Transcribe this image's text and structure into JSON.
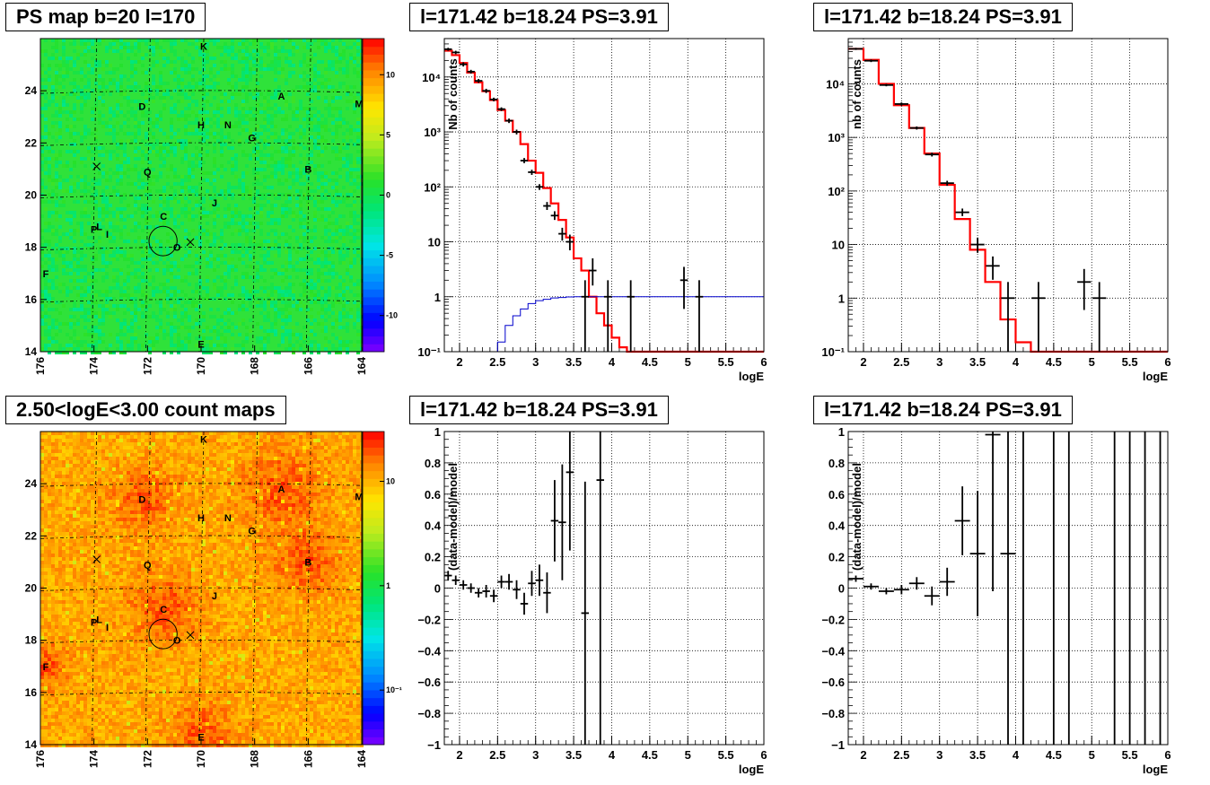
{
  "panels": {
    "map1_title": "PS map b=20 l=170",
    "map2_title": "2.50<logE<3.00 count maps",
    "spec1_title": "l=171.42 b=18.24 PS=3.91",
    "spec2_title": "l=171.42 b=18.24 PS=3.91",
    "res1_title": "l=171.42 b=18.24 PS=3.91",
    "res2_title": "l=171.42 b=18.24 PS=3.91"
  },
  "colors": {
    "data": "#000000",
    "model": "#ff0000",
    "signal": "#0000cc",
    "grid": "#000000",
    "map1_bg": "#2fe23a",
    "map2_bg": "#f0842a"
  },
  "chart_data": [
    {
      "id": "map1",
      "type": "heatmap",
      "title": "PS map b=20 l=170",
      "x_ticks": [
        "176",
        "174",
        "172",
        "170",
        "168",
        "166",
        "164"
      ],
      "y_ticks": [
        "14",
        "16",
        "18",
        "20",
        "22",
        "24"
      ],
      "xlim": [
        176,
        164
      ],
      "ylim": [
        14,
        26
      ],
      "colorbar": {
        "scale": "linear",
        "range": [
          -13,
          13
        ],
        "ticks": [
          "10",
          "5",
          "0",
          "-5",
          "-10"
        ],
        "tick_values": [
          10,
          5,
          0,
          -5,
          -10
        ]
      },
      "labels": [
        {
          "t": "K",
          "l": 169.9,
          "b": 25.7
        },
        {
          "t": "A",
          "l": 167.0,
          "b": 23.8
        },
        {
          "t": "M",
          "l": 164.1,
          "b": 23.5
        },
        {
          "t": "D",
          "l": 172.2,
          "b": 23.4
        },
        {
          "t": "H",
          "l": 170.0,
          "b": 22.7
        },
        {
          "t": "N",
          "l": 169.0,
          "b": 22.7
        },
        {
          "t": "G",
          "l": 168.1,
          "b": 22.2
        },
        {
          "t": "B",
          "l": 166.0,
          "b": 21.0
        },
        {
          "t": "Q",
          "l": 172.0,
          "b": 20.9
        },
        {
          "t": "J",
          "l": 169.5,
          "b": 19.7
        },
        {
          "t": "C",
          "l": 171.4,
          "b": 19.2
        },
        {
          "t": "P",
          "l": 174.0,
          "b": 18.7
        },
        {
          "t": "L",
          "l": 173.8,
          "b": 18.8
        },
        {
          "t": "I",
          "l": 173.5,
          "b": 18.5
        },
        {
          "t": "O",
          "l": 170.9,
          "b": 18.0
        },
        {
          "t": "F",
          "l": 175.8,
          "b": 17.0
        },
        {
          "t": "E",
          "l": 170.0,
          "b": 14.3
        }
      ],
      "crosses": [
        {
          "l": 173.9,
          "b": 21.1
        },
        {
          "l": 170.4,
          "b": 18.2
        }
      ],
      "circle": {
        "l": 171.42,
        "b": 18.24,
        "r": 0.5
      }
    },
    {
      "id": "map2",
      "type": "heatmap",
      "title": "2.50<logE<3.00 count maps",
      "x_ticks": [
        "176",
        "174",
        "172",
        "170",
        "168",
        "166",
        "164"
      ],
      "y_ticks": [
        "14",
        "16",
        "18",
        "20",
        "22",
        "24"
      ],
      "xlim": [
        176,
        164
      ],
      "ylim": [
        14,
        26
      ],
      "colorbar": {
        "scale": "log",
        "range": [
          0.03,
          30
        ],
        "ticks": [
          "10",
          "1",
          "10⁻¹"
        ],
        "tick_values": [
          10,
          1,
          0.1
        ]
      },
      "labels": "same as map1",
      "crosses": [
        {
          "l": 173.9,
          "b": 21.1
        },
        {
          "l": 170.4,
          "b": 18.2
        }
      ],
      "circle": {
        "l": 171.42,
        "b": 18.24,
        "r": 0.5
      }
    },
    {
      "id": "spec1",
      "type": "line",
      "title": "l=171.42 b=18.24 PS=3.91",
      "xlabel": "logE",
      "ylabel": "Nb of counts",
      "xlim": [
        1.8,
        6.0
      ],
      "ylim": [
        0.1,
        50000
      ],
      "yscale": "log",
      "x_ticks": [
        2,
        2.5,
        3,
        3.5,
        4,
        4.5,
        5,
        5.5,
        6
      ],
      "x_tick_labels": [
        "2",
        "2.5",
        "3",
        "3.5",
        "4",
        "4.5",
        "5",
        "5.5",
        "6"
      ],
      "y_ticks": [
        0.1,
        1,
        10,
        100,
        1000,
        10000
      ],
      "y_tick_labels": [
        "10⁻¹",
        "1",
        "10",
        "10²",
        "10³",
        "10⁴"
      ],
      "model_edges": [
        1.8,
        1.9,
        2.0,
        2.1,
        2.2,
        2.3,
        2.4,
        2.5,
        2.6,
        2.7,
        2.8,
        2.9,
        3.0,
        3.1,
        3.2,
        3.3,
        3.4,
        3.5,
        3.6,
        3.7,
        3.8,
        3.9,
        4.0,
        4.1,
        4.2,
        6.0
      ],
      "model_values": [
        30000,
        25000,
        18000,
        12000,
        8000,
        5500,
        3800,
        2500,
        1600,
        1000,
        600,
        300,
        180,
        95,
        50,
        25,
        12,
        5,
        3,
        1,
        0.5,
        0.3,
        0.18,
        0.12,
        0.1
      ],
      "signal_values": [
        0.05,
        0.05,
        0.05,
        0.05,
        0.05,
        0.05,
        0.08,
        0.15,
        0.3,
        0.45,
        0.6,
        0.75,
        0.85,
        0.9,
        0.95,
        0.97,
        0.99,
        1,
        1,
        1,
        1,
        1,
        1,
        1,
        1
      ],
      "data_points": [
        {
          "x": 1.85,
          "y": 32000,
          "lo": 30000,
          "hi": 34000
        },
        {
          "x": 1.95,
          "y": 28000,
          "lo": 26000,
          "hi": 30000
        },
        {
          "x": 2.05,
          "y": 17000,
          "lo": 15500,
          "hi": 18500
        },
        {
          "x": 2.15,
          "y": 12500,
          "lo": 11500,
          "hi": 13500
        },
        {
          "x": 2.25,
          "y": 8500,
          "lo": 7800,
          "hi": 9200
        },
        {
          "x": 2.35,
          "y": 5600,
          "lo": 5100,
          "hi": 6100
        },
        {
          "x": 2.45,
          "y": 3900,
          "lo": 3600,
          "hi": 4200
        },
        {
          "x": 2.55,
          "y": 2600,
          "lo": 2400,
          "hi": 2800
        },
        {
          "x": 2.65,
          "y": 1600,
          "lo": 1450,
          "hi": 1750
        },
        {
          "x": 2.75,
          "y": 1000,
          "lo": 900,
          "hi": 1100
        },
        {
          "x": 2.85,
          "y": 300,
          "lo": 270,
          "hi": 335
        },
        {
          "x": 2.95,
          "y": 185,
          "lo": 165,
          "hi": 205
        },
        {
          "x": 3.05,
          "y": 100,
          "lo": 88,
          "hi": 112
        },
        {
          "x": 3.15,
          "y": 45,
          "lo": 38,
          "hi": 53
        },
        {
          "x": 3.25,
          "y": 30,
          "lo": 25,
          "hi": 36
        },
        {
          "x": 3.35,
          "y": 14,
          "lo": 10.5,
          "hi": 18
        },
        {
          "x": 3.45,
          "y": 10,
          "lo": 7,
          "hi": 13.5
        },
        {
          "x": 3.65,
          "y": 1,
          "lo": 0.1,
          "hi": 2
        },
        {
          "x": 3.75,
          "y": 3,
          "lo": 1.6,
          "hi": 5
        },
        {
          "x": 3.95,
          "y": 1,
          "lo": 0.1,
          "hi": 2
        },
        {
          "x": 4.25,
          "y": 1,
          "lo": 0.1,
          "hi": 2
        },
        {
          "x": 4.95,
          "y": 2,
          "lo": 0.6,
          "hi": 3.5
        },
        {
          "x": 5.15,
          "y": 1,
          "lo": 0.1,
          "hi": 2
        }
      ]
    },
    {
      "id": "spec2",
      "type": "line",
      "title": "l=171.42 b=18.24 PS=3.91",
      "xlabel": "logE",
      "ylabel": "nb of counts",
      "xlim": [
        1.8,
        6.0
      ],
      "ylim": [
        0.1,
        70000
      ],
      "yscale": "log",
      "x_ticks": [
        2,
        2.5,
        3,
        3.5,
        4,
        4.5,
        5,
        5.5,
        6
      ],
      "x_tick_labels": [
        "2",
        "2.5",
        "3",
        "3.5",
        "4",
        "4.5",
        "5",
        "5.5",
        "6"
      ],
      "y_ticks": [
        0.1,
        1,
        10,
        100,
        1000,
        10000
      ],
      "y_tick_labels": [
        "10⁻¹",
        "1",
        "10",
        "10²",
        "10³",
        "10⁴"
      ],
      "model_edges": [
        1.8,
        2.0,
        2.2,
        2.4,
        2.6,
        2.8,
        3.0,
        3.2,
        3.4,
        3.6,
        3.8,
        4.0,
        4.2,
        6.0
      ],
      "model_values": [
        45000,
        28000,
        10000,
        4000,
        1500,
        500,
        130,
        30,
        8,
        2,
        0.4,
        0.15,
        0.1
      ],
      "data_points": [
        {
          "x": 1.9,
          "y": 45000,
          "lo": 43000,
          "hi": 47000
        },
        {
          "x": 2.1,
          "y": 27000,
          "lo": 25500,
          "hi": 28500
        },
        {
          "x": 2.3,
          "y": 9500,
          "lo": 9000,
          "hi": 10000
        },
        {
          "x": 2.5,
          "y": 4200,
          "lo": 3900,
          "hi": 4500
        },
        {
          "x": 2.7,
          "y": 1500,
          "lo": 1400,
          "hi": 1600
        },
        {
          "x": 2.9,
          "y": 480,
          "lo": 440,
          "hi": 520
        },
        {
          "x": 3.1,
          "y": 140,
          "lo": 125,
          "hi": 155
        },
        {
          "x": 3.3,
          "y": 40,
          "lo": 34,
          "hi": 47
        },
        {
          "x": 3.5,
          "y": 10,
          "lo": 7,
          "hi": 13.5
        },
        {
          "x": 3.7,
          "y": 4,
          "lo": 2.2,
          "hi": 6
        },
        {
          "x": 3.9,
          "y": 1,
          "lo": 0.1,
          "hi": 2
        },
        {
          "x": 4.3,
          "y": 1,
          "lo": 0.1,
          "hi": 2
        },
        {
          "x": 4.9,
          "y": 2,
          "lo": 0.6,
          "hi": 3.5
        },
        {
          "x": 5.1,
          "y": 1,
          "lo": 0.1,
          "hi": 2
        }
      ]
    },
    {
      "id": "res1",
      "type": "scatter",
      "title": "l=171.42 b=18.24 PS=3.91",
      "xlabel": "logE",
      "ylabel": "(data-model)/model",
      "xlim": [
        1.8,
        6.0
      ],
      "ylim": [
        -1,
        1
      ],
      "x_ticks": [
        2,
        2.5,
        3,
        3.5,
        4,
        4.5,
        5,
        5.5,
        6
      ],
      "x_tick_labels": [
        "2",
        "2.5",
        "3",
        "3.5",
        "4",
        "4.5",
        "5",
        "5.5",
        "6"
      ],
      "y_ticks": [
        -1,
        -0.8,
        -0.6,
        -0.4,
        -0.2,
        0,
        0.2,
        0.4,
        0.6,
        0.8,
        1
      ],
      "y_tick_labels": [
        "−1",
        "−0.8",
        "−0.6",
        "−0.4",
        "−0.2",
        "0",
        "0.2",
        "0.4",
        "0.6",
        "0.8",
        "1"
      ],
      "xhalf": 0.05,
      "points": [
        {
          "x": 1.85,
          "y": 0.08,
          "e": 0.03
        },
        {
          "x": 1.95,
          "y": 0.05,
          "e": 0.03
        },
        {
          "x": 2.05,
          "y": 0.02,
          "e": 0.03
        },
        {
          "x": 2.15,
          "y": 0.0,
          "e": 0.03
        },
        {
          "x": 2.25,
          "y": -0.03,
          "e": 0.03
        },
        {
          "x": 2.35,
          "y": -0.02,
          "e": 0.04
        },
        {
          "x": 2.45,
          "y": -0.05,
          "e": 0.04
        },
        {
          "x": 2.55,
          "y": 0.04,
          "e": 0.04
        },
        {
          "x": 2.65,
          "y": 0.04,
          "e": 0.05
        },
        {
          "x": 2.75,
          "y": -0.01,
          "e": 0.06
        },
        {
          "x": 2.85,
          "y": -0.1,
          "e": 0.07
        },
        {
          "x": 2.95,
          "y": 0.03,
          "e": 0.08
        },
        {
          "x": 3.05,
          "y": 0.05,
          "e": 0.1
        },
        {
          "x": 3.15,
          "y": -0.03,
          "e": 0.13
        },
        {
          "x": 3.25,
          "y": 0.43,
          "e": 0.26
        },
        {
          "x": 3.35,
          "y": 0.42,
          "e": 0.37
        },
        {
          "x": 3.45,
          "y": 0.74,
          "e": 0.5
        },
        {
          "x": 3.65,
          "y": -0.16,
          "e": 0.84
        },
        {
          "x": 3.85,
          "y": 0.69,
          "e": 1.7
        }
      ]
    },
    {
      "id": "res2",
      "type": "scatter",
      "title": "l=171.42 b=18.24 PS=3.91",
      "xlabel": "logE",
      "ylabel": "(data-model)/model",
      "xlim": [
        1.8,
        6.0
      ],
      "ylim": [
        -1,
        1
      ],
      "x_ticks": [
        2,
        2.5,
        3,
        3.5,
        4,
        4.5,
        5,
        5.5,
        6
      ],
      "x_tick_labels": [
        "2",
        "2.5",
        "3",
        "3.5",
        "4",
        "4.5",
        "5",
        "5.5",
        "6"
      ],
      "y_ticks": [
        -1,
        -0.8,
        -0.6,
        -0.4,
        -0.2,
        0,
        0.2,
        0.4,
        0.6,
        0.8,
        1
      ],
      "y_tick_labels": [
        "−1",
        "−0.8",
        "−0.6",
        "−0.4",
        "−0.2",
        "0",
        "0.2",
        "0.4",
        "0.6",
        "0.8",
        "1"
      ],
      "xhalf": 0.1,
      "points": [
        {
          "x": 1.9,
          "y": 0.06,
          "e": 0.02
        },
        {
          "x": 2.1,
          "y": 0.01,
          "e": 0.02
        },
        {
          "x": 2.3,
          "y": -0.02,
          "e": 0.02
        },
        {
          "x": 2.5,
          "y": -0.01,
          "e": 0.03
        },
        {
          "x": 2.7,
          "y": 0.03,
          "e": 0.04
        },
        {
          "x": 2.9,
          "y": -0.05,
          "e": 0.06
        },
        {
          "x": 3.1,
          "y": 0.04,
          "e": 0.09
        },
        {
          "x": 3.3,
          "y": 0.43,
          "e": 0.22
        },
        {
          "x": 3.5,
          "y": 0.22,
          "e": 0.4
        },
        {
          "x": 3.7,
          "y": 0.98,
          "e": 1.0
        },
        {
          "x": 3.9,
          "y": 0.22,
          "e": 1.3
        }
      ],
      "verticals": [
        4.1,
        4.5,
        4.7,
        5.3,
        5.5,
        5.7,
        5.9
      ]
    }
  ]
}
